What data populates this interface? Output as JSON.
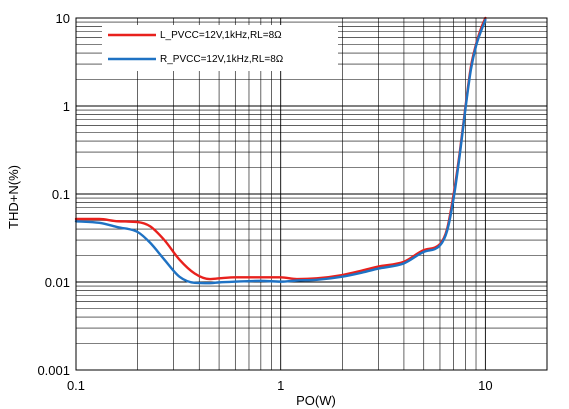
{
  "chart_data": {
    "type": "line",
    "xlabel": "PO(W)",
    "ylabel": "THD+N(%)",
    "xscale": "log",
    "yscale": "log",
    "xlim": [
      0.1,
      20
    ],
    "ylim": [
      0.001,
      10
    ],
    "x_tick_labels": [
      {
        "value": 0.1,
        "label": "0.1"
      },
      {
        "value": 1,
        "label": "1"
      },
      {
        "value": 10,
        "label": "10"
      }
    ],
    "y_tick_labels": [
      {
        "value": 10,
        "label": "10"
      },
      {
        "value": 1,
        "label": "1"
      },
      {
        "value": 0.1,
        "label": "0.1"
      },
      {
        "value": 0.01,
        "label": "0.01"
      },
      {
        "value": 0.001,
        "label": "0.001"
      }
    ],
    "grid": true,
    "legend_position": "top-left",
    "series": [
      {
        "name": "L_PVCC=12V,1kHz,RL=8Ω",
        "color": "#e8211d",
        "x": [
          0.1,
          0.13,
          0.16,
          0.2,
          0.23,
          0.27,
          0.32,
          0.38,
          0.45,
          0.5,
          0.6,
          0.8,
          1.0,
          1.2,
          1.5,
          2.0,
          2.5,
          3.0,
          4.0,
          5.0,
          6.0,
          6.5,
          7.0,
          7.5,
          8.0,
          8.5,
          9.0,
          9.5,
          10.0
        ],
        "y": [
          0.052,
          0.052,
          0.049,
          0.048,
          0.043,
          0.03,
          0.018,
          0.0125,
          0.0108,
          0.011,
          0.0113,
          0.0113,
          0.0113,
          0.0108,
          0.011,
          0.012,
          0.0135,
          0.015,
          0.017,
          0.023,
          0.027,
          0.04,
          0.1,
          0.3,
          1.0,
          2.8,
          5.0,
          7.5,
          10.0
        ]
      },
      {
        "name": "R_PVCC=12V,1kHz,RL=8Ω",
        "color": "#1f72c3",
        "x": [
          0.1,
          0.13,
          0.16,
          0.2,
          0.23,
          0.27,
          0.32,
          0.38,
          0.45,
          0.5,
          0.6,
          0.8,
          1.0,
          1.2,
          1.5,
          2.0,
          2.5,
          3.0,
          4.0,
          5.0,
          6.0,
          6.5,
          7.0,
          7.5,
          8.0,
          8.5,
          9.0,
          9.5,
          10.0
        ],
        "y": [
          0.049,
          0.047,
          0.042,
          0.037,
          0.028,
          0.018,
          0.0115,
          0.0098,
          0.0097,
          0.0099,
          0.0101,
          0.0103,
          0.0101,
          0.0104,
          0.0106,
          0.0115,
          0.0128,
          0.0142,
          0.0163,
          0.022,
          0.026,
          0.038,
          0.09,
          0.28,
          0.95,
          2.6,
          4.8,
          7.0,
          9.5
        ]
      }
    ]
  }
}
